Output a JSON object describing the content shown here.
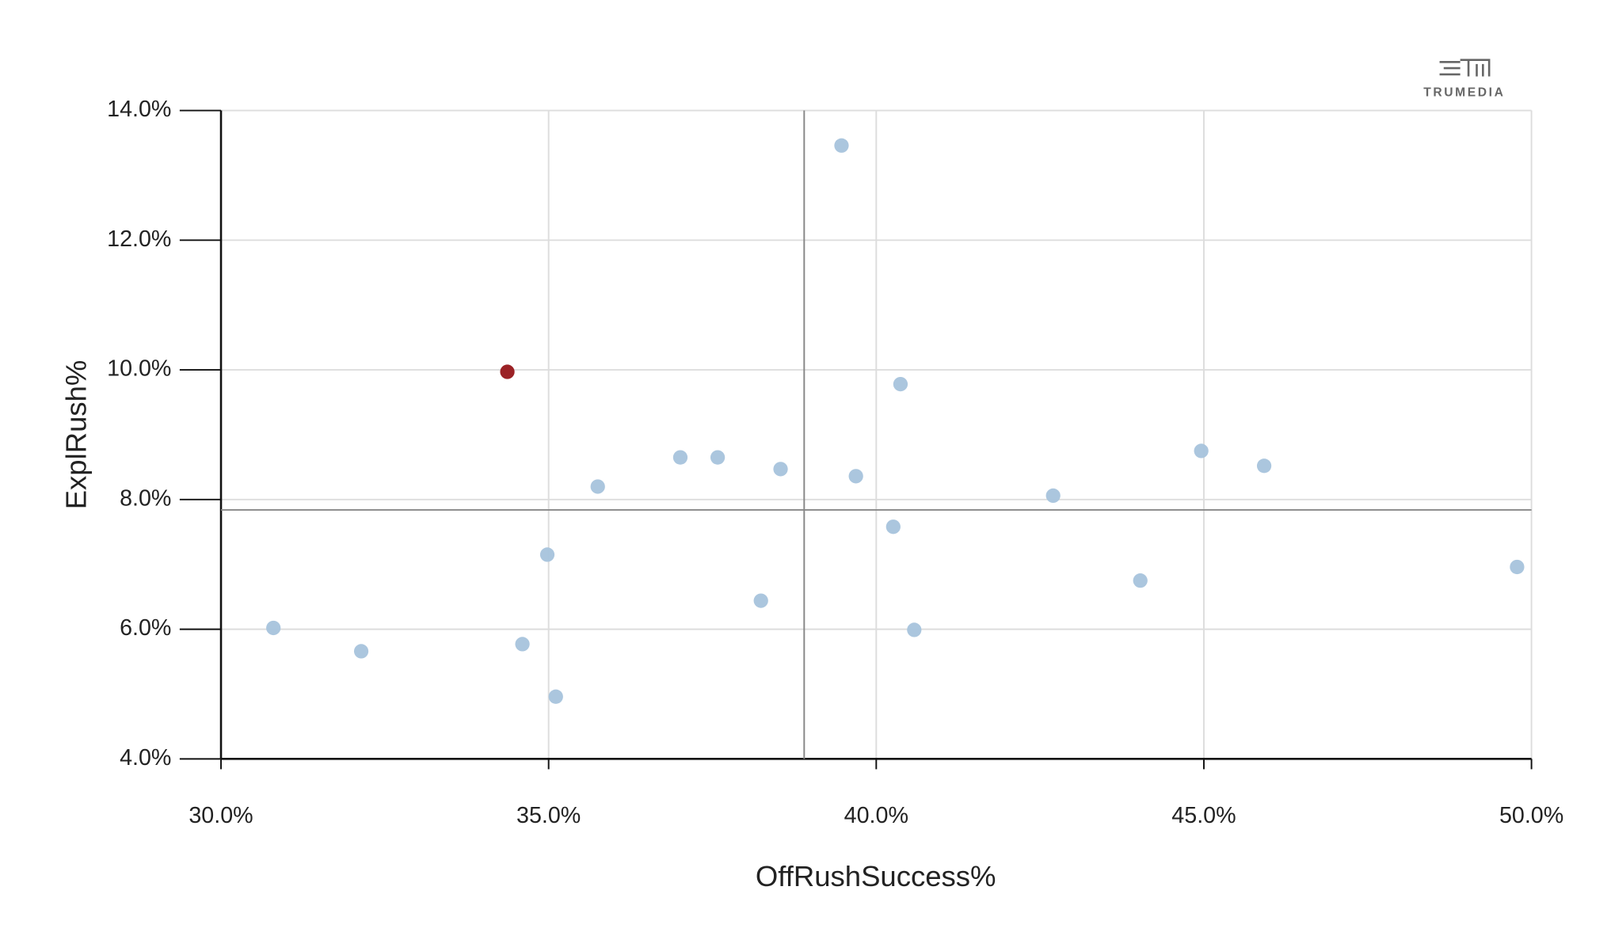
{
  "chart_data": {
    "type": "scatter",
    "x_label": "OffRushSuccess%",
    "y_label": "ExplRush%",
    "logo_text": "TRUMEDIA",
    "xlim": [
      30,
      50
    ],
    "ylim": [
      4,
      14
    ],
    "xticks": [
      {
        "value": 30,
        "label": "30.0%"
      },
      {
        "value": 35,
        "label": "35.0%"
      },
      {
        "value": 40,
        "label": "40.0%"
      },
      {
        "value": 45,
        "label": "45.0%"
      },
      {
        "value": 50,
        "label": "50.0%"
      }
    ],
    "yticks": [
      {
        "value": 4,
        "label": "4.0%"
      },
      {
        "value": 6,
        "label": "6.0%"
      },
      {
        "value": 8,
        "label": "8.0%"
      },
      {
        "value": 10,
        "label": "10.0%"
      },
      {
        "value": 12,
        "label": "12.0%"
      },
      {
        "value": 14,
        "label": "14.0%"
      }
    ],
    "grid": true,
    "reference_lines": {
      "x": 38.9,
      "y": 7.84
    },
    "x": [
      39.47,
      34.37,
      40.37,
      37.01,
      37.58,
      38.54,
      35.75,
      39.69,
      42.7,
      44.96,
      45.92,
      40.26,
      34.98,
      49.78,
      44.03,
      38.24,
      30.8,
      40.58,
      32.14,
      34.6,
      35.11
    ],
    "values": [
      13.46,
      9.97,
      9.78,
      8.65,
      8.65,
      8.47,
      8.2,
      8.36,
      8.06,
      8.75,
      8.52,
      7.58,
      7.15,
      6.96,
      6.75,
      6.44,
      6.02,
      5.99,
      5.66,
      5.77,
      4.96
    ],
    "colors": [
      "#a7c3dc",
      "#9b2226",
      "#a7c3dc",
      "#a7c3dc",
      "#a7c3dc",
      "#a7c3dc",
      "#a7c3dc",
      "#a7c3dc",
      "#a7c3dc",
      "#a7c3dc",
      "#a7c3dc",
      "#a7c3dc",
      "#a7c3dc",
      "#a7c3dc",
      "#a7c3dc",
      "#a7c3dc",
      "#a7c3dc",
      "#a7c3dc",
      "#a7c3dc",
      "#a7c3dc",
      "#a7c3dc"
    ]
  }
}
